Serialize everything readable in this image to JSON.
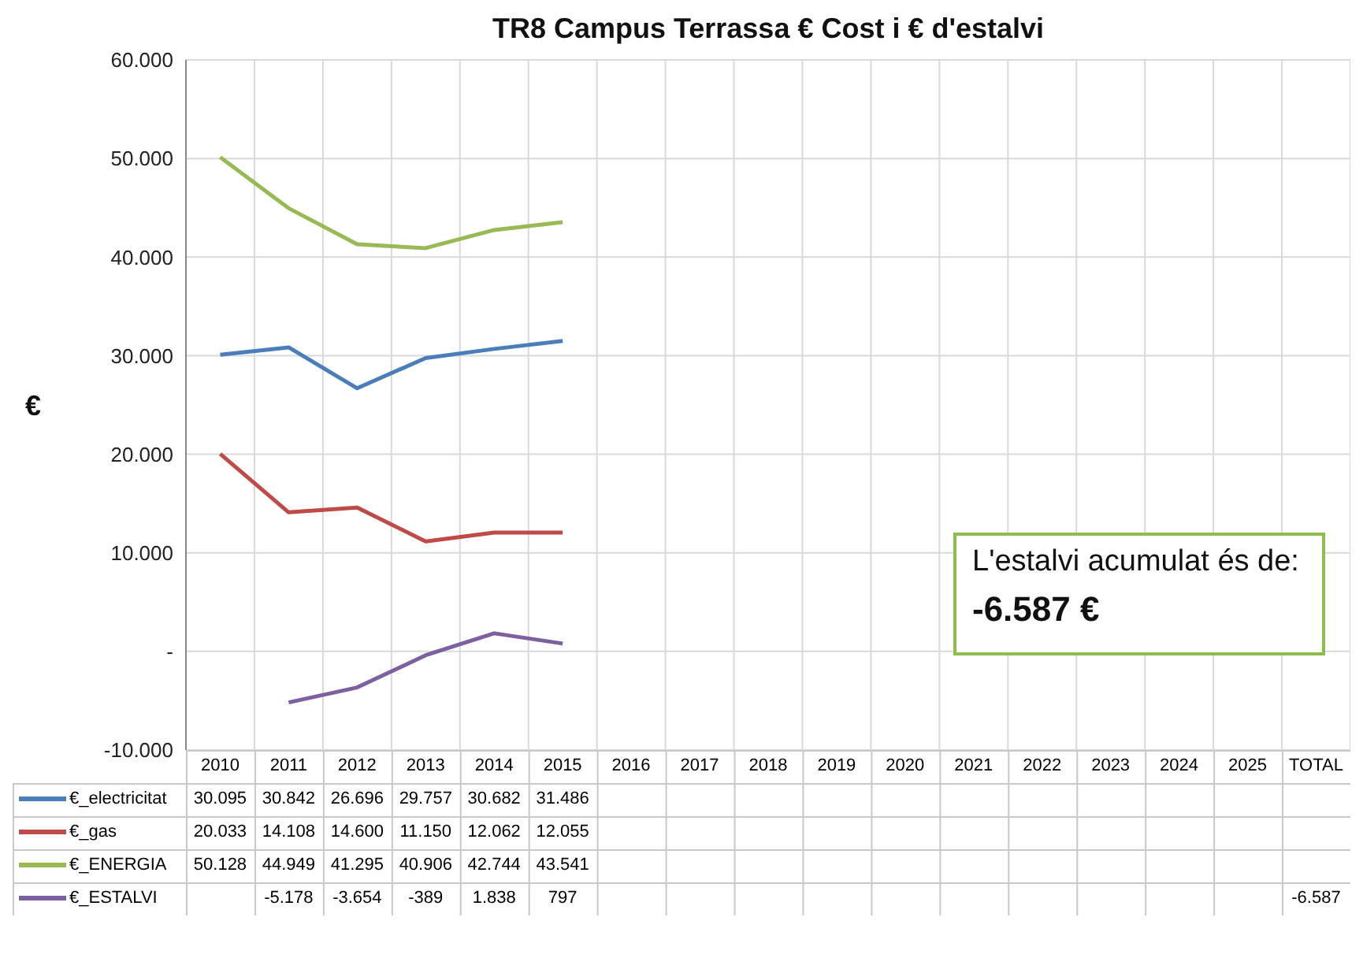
{
  "chart_data": {
    "type": "line",
    "title": "TR8 Campus Terrassa € Cost i € d'estalvi",
    "ylabel": "€",
    "categories": [
      "2010",
      "2011",
      "2012",
      "2013",
      "2014",
      "2015",
      "2016",
      "2017",
      "2018",
      "2019",
      "2020",
      "2021",
      "2022",
      "2023",
      "2024",
      "2025",
      "TOTAL"
    ],
    "series": [
      {
        "name": "€_electricitat",
        "color": "#4a7ebb",
        "values": [
          30095,
          30842,
          26696,
          29757,
          30682,
          31486,
          null,
          null,
          null,
          null,
          null,
          null,
          null,
          null,
          null,
          null,
          null
        ],
        "value_labels": [
          "30.095",
          "30.842",
          "26.696",
          "29.757",
          "30.682",
          "31.486",
          null,
          null,
          null,
          null,
          null,
          null,
          null,
          null,
          null,
          null,
          null
        ]
      },
      {
        "name": "€_gas",
        "color": "#be4b48",
        "values": [
          20033,
          14108,
          14600,
          11150,
          12062,
          12055,
          null,
          null,
          null,
          null,
          null,
          null,
          null,
          null,
          null,
          null,
          null
        ],
        "value_labels": [
          "20.033",
          "14.108",
          "14.600",
          "11.150",
          "12.062",
          "12.055",
          null,
          null,
          null,
          null,
          null,
          null,
          null,
          null,
          null,
          null,
          null
        ]
      },
      {
        "name": "€_ENERGIA",
        "color": "#98b954",
        "values": [
          50128,
          44949,
          41295,
          40906,
          42744,
          43541,
          null,
          null,
          null,
          null,
          null,
          null,
          null,
          null,
          null,
          null,
          null
        ],
        "value_labels": [
          "50.128",
          "44.949",
          "41.295",
          "40.906",
          "42.744",
          "43.541",
          null,
          null,
          null,
          null,
          null,
          null,
          null,
          null,
          null,
          null,
          null
        ]
      },
      {
        "name": "€_ESTALVI",
        "color": "#7d60a0",
        "values": [
          null,
          -5178,
          -3654,
          -389,
          1838,
          797,
          null,
          null,
          null,
          null,
          null,
          null,
          null,
          null,
          null,
          null,
          null
        ],
        "value_labels": [
          null,
          "-5.178",
          "-3.654",
          "-389",
          "1.838",
          "797",
          null,
          null,
          null,
          null,
          null,
          null,
          null,
          null,
          null,
          null,
          "-6.587"
        ]
      }
    ],
    "ylim": [
      -10000,
      60000
    ],
    "yticks": [
      {
        "value": -10000,
        "label": "-10.000"
      },
      {
        "value": 0,
        "label": "-"
      },
      {
        "value": 10000,
        "label": "10.000"
      },
      {
        "value": 20000,
        "label": "20.000"
      },
      {
        "value": 30000,
        "label": "30.000"
      },
      {
        "value": 40000,
        "label": "40.000"
      },
      {
        "value": 50000,
        "label": "50.000"
      },
      {
        "value": 60000,
        "label": "60.000"
      }
    ],
    "grid": true,
    "legend": "bottom",
    "marker": "none",
    "line_style": "solid",
    "annotations": [
      "L'estalvi acumulat és de:",
      "-6.587 €"
    ]
  }
}
